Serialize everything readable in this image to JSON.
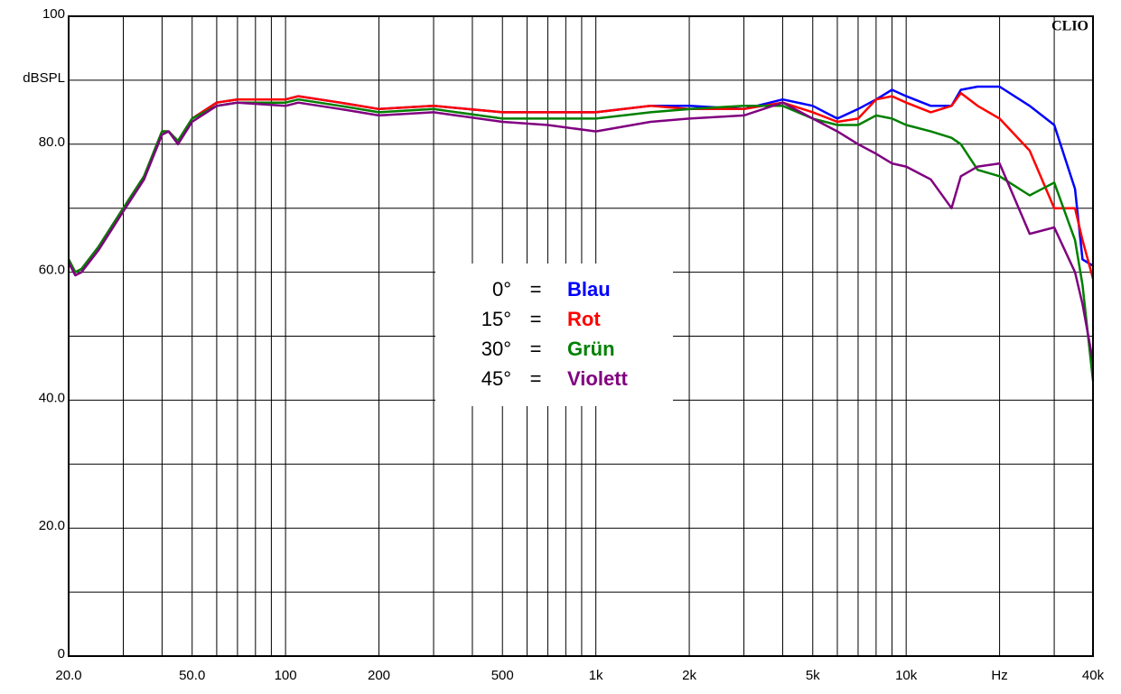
{
  "chart_data": {
    "type": "line",
    "watermark": "CLIO",
    "log_x": true,
    "grid": true,
    "xlim": [
      20,
      40000
    ],
    "ylim": [
      0,
      100
    ],
    "xticks": [
      {
        "value": 20,
        "label": "20.0"
      },
      {
        "value": 50,
        "label": "50.0"
      },
      100,
      200,
      500,
      {
        "value": 1000,
        "label": "1k"
      },
      {
        "value": 2000,
        "label": "2k"
      },
      {
        "value": 5000,
        "label": "5k"
      },
      {
        "value": 10000,
        "label": "10k"
      },
      {
        "value": 20000,
        "label": "Hz"
      },
      {
        "value": 40000,
        "label": "40k"
      }
    ],
    "x_minor_ticks": [
      30,
      40,
      60,
      70,
      80,
      90,
      300,
      400,
      600,
      700,
      800,
      900,
      3000,
      4000,
      6000,
      7000,
      8000,
      9000,
      30000
    ],
    "yticks": [
      0,
      {
        "value": 20,
        "label": "20.0"
      },
      {
        "value": 40,
        "label": "40.0"
      },
      {
        "value": 60,
        "label": "60.0"
      },
      {
        "value": 80,
        "label": "80.0"
      },
      {
        "value": 90,
        "label": "dBSPL"
      },
      100
    ],
    "y_minor_ticks": [
      10,
      30,
      50,
      70
    ],
    "legend_separator": "=",
    "x": [
      20,
      21,
      22,
      25,
      30,
      35,
      40,
      42,
      45,
      50,
      60,
      70,
      100,
      110,
      150,
      200,
      300,
      500,
      700,
      1000,
      1500,
      2000,
      3000,
      4000,
      5000,
      6000,
      7000,
      8000,
      9000,
      10000,
      12000,
      14000,
      15000,
      17000,
      20000,
      25000,
      30000,
      35000,
      37000,
      40000
    ],
    "series": [
      {
        "name": "Blau",
        "label": "0°",
        "color": "#0000ff",
        "values": [
          62,
          60,
          60.5,
          64,
          70,
          75,
          82,
          82,
          80.5,
          84,
          86.5,
          87,
          87,
          87.5,
          86.5,
          85.5,
          86,
          85,
          85,
          85,
          86,
          86,
          85.5,
          87,
          86,
          84,
          85.5,
          87,
          88.5,
          87.5,
          86,
          86,
          88.5,
          89,
          89,
          86,
          83,
          73,
          62,
          61
        ]
      },
      {
        "name": "Rot",
        "label": "15°",
        "color": "#ff0000",
        "values": [
          62,
          60,
          60.5,
          64,
          70,
          75,
          82,
          82,
          80.5,
          84,
          86.5,
          87,
          87,
          87.5,
          86.5,
          85.5,
          86,
          85,
          85,
          85,
          86,
          85.5,
          85.5,
          86.5,
          85,
          83.5,
          84,
          87,
          87.5,
          86.5,
          85,
          86,
          88,
          86,
          84,
          79,
          70,
          70,
          65,
          59
        ]
      },
      {
        "name": "Grün",
        "label": "30°",
        "color": "#008000",
        "values": [
          62,
          60,
          60.5,
          64,
          70,
          75,
          82,
          82,
          80.5,
          84,
          86,
          86.5,
          86.5,
          87,
          86,
          85,
          85.5,
          84,
          84,
          84,
          85,
          85.5,
          86,
          86,
          84,
          83,
          83,
          84.5,
          84,
          83,
          82,
          81,
          80,
          76,
          75,
          72,
          74,
          65,
          58,
          43
        ]
      },
      {
        "name": "Violett",
        "label": "45°",
        "color": "#800080",
        "values": [
          61.5,
          59.5,
          60,
          63.5,
          69.5,
          74.5,
          81.5,
          82,
          80,
          83.5,
          86,
          86.5,
          86,
          86.5,
          85.5,
          84.5,
          85,
          83.5,
          83,
          82,
          83.5,
          84,
          84.5,
          86.5,
          84,
          82,
          80,
          78.5,
          77,
          76.5,
          74.5,
          70,
          75,
          76.5,
          77,
          66,
          67,
          60,
          55,
          46
        ]
      }
    ]
  }
}
